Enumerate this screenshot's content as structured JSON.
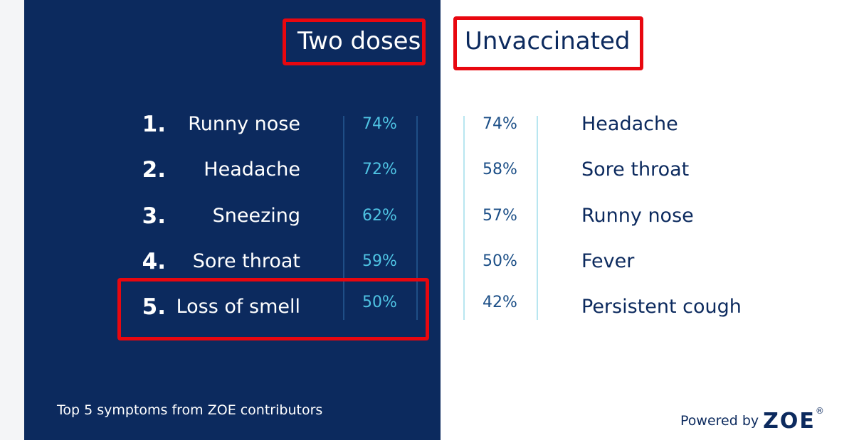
{
  "headings": {
    "left": "Two doses",
    "right": "Unvaccinated"
  },
  "two_doses": [
    {
      "rank": "1.",
      "symptom": "Runny nose",
      "pct": "74%"
    },
    {
      "rank": "2.",
      "symptom": "Headache",
      "pct": "72%"
    },
    {
      "rank": "3.",
      "symptom": "Sneezing",
      "pct": "62%"
    },
    {
      "rank": "4.",
      "symptom": "Sore throat",
      "pct": "59%"
    },
    {
      "rank": "5.",
      "symptom": "Loss of smell",
      "pct": "50%"
    }
  ],
  "unvaccinated": [
    {
      "pct": "74%",
      "symptom": "Headache"
    },
    {
      "pct": "58%",
      "symptom": "Sore throat"
    },
    {
      "pct": "57%",
      "symptom": "Runny nose"
    },
    {
      "pct": "50%",
      "symptom": "Fever"
    },
    {
      "pct": "42%",
      "symptom": "Persistent cough"
    }
  ],
  "footer": {
    "caption": "Top 5 symptoms from ZOE contributors",
    "powered_by": "Powered by",
    "brand": "ZOE",
    "registered": "®"
  },
  "colors": {
    "navy": "#0c2a5e",
    "cyan": "#4fc3e3",
    "highlight_red": "#e8070f"
  }
}
